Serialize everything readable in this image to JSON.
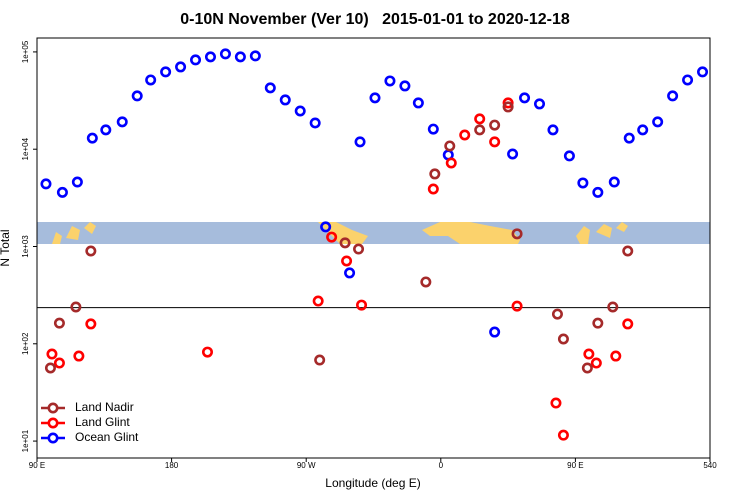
{
  "chart_data": {
    "type": "scatter",
    "title": "0-10N November (Ver 10)   2015-01-01 to 2020-12-18",
    "x_label": "Longitude (deg E)",
    "y_label": "N Total",
    "xlim": [
      90,
      540
    ],
    "xticks": [
      {
        "value": 90,
        "label": "90 E"
      },
      180,
      {
        "value": 270,
        "label": "90 W"
      },
      {
        "value": 360,
        "label": "0"
      },
      {
        "value": 450,
        "label": "90 E"
      },
      540
    ],
    "ylim": [
      6.7,
      139000
    ],
    "yticks": [
      {
        "value": 10,
        "label": "1e+01"
      },
      {
        "value": 100,
        "label": "1e+02"
      },
      {
        "value": 1000,
        "label": "1e+03"
      },
      {
        "value": 10000,
        "label": "1e+04"
      },
      {
        "value": 100000,
        "label": "1e+05"
      }
    ],
    "y_log": true,
    "hline": 235,
    "legend": "lower left",
    "series": [
      {
        "name": "Land Nadir",
        "color": "#a52a2a",
        "x": [
          99,
          105,
          116,
          126,
          279,
          296,
          305,
          350,
          356,
          366,
          386,
          396,
          405,
          411,
          438,
          442,
          458,
          465,
          475,
          485
        ],
        "values": [
          56.4,
          163,
          239,
          899,
          68.1,
          1090,
          942,
          432,
          5570,
          10800,
          15800,
          17700,
          27200,
          1350,
          202,
          112,
          56.4,
          163,
          239,
          899
        ]
      },
      {
        "name": "Land Glint",
        "color": "#ff0000",
        "x": [
          100,
          105,
          118,
          126,
          204,
          278,
          287,
          297,
          307,
          355,
          367,
          376,
          386,
          396,
          405,
          411,
          437,
          442,
          459,
          464,
          477,
          485
        ],
        "values": [
          78.5,
          63.4,
          74.8,
          160,
          82.2,
          275,
          1250,
          710,
          250,
          3900,
          7220,
          14000,
          20500,
          11900,
          29900,
          244,
          24.6,
          11.5,
          78.5,
          63.4,
          74.8,
          160
        ]
      },
      {
        "name": "Ocean Glint",
        "color": "#0000ff",
        "x": [
          96,
          107,
          117,
          127,
          136,
          147,
          157,
          166,
          176,
          186,
          196,
          206,
          216,
          226,
          236,
          246,
          256,
          266,
          276,
          283,
          299,
          306,
          316,
          326,
          336,
          345,
          355,
          365,
          396,
          408,
          416,
          426,
          435,
          446,
          455,
          465,
          476,
          486,
          495,
          505,
          515,
          525,
          535
        ],
        "values": [
          4400,
          3600,
          4600,
          13000,
          15800,
          19100,
          35300,
          51500,
          62300,
          70100,
          82800,
          88900,
          95400,
          88900,
          91000,
          42700,
          32100,
          24700,
          18600,
          1590,
          535,
          11900,
          33700,
          50300,
          44700,
          29900,
          16100,
          8730,
          132,
          8930,
          33700,
          29200,
          15800,
          8530,
          4500,
          3600,
          4600,
          13000,
          15800,
          19100,
          35300,
          51500,
          62300
        ]
      }
    ]
  }
}
